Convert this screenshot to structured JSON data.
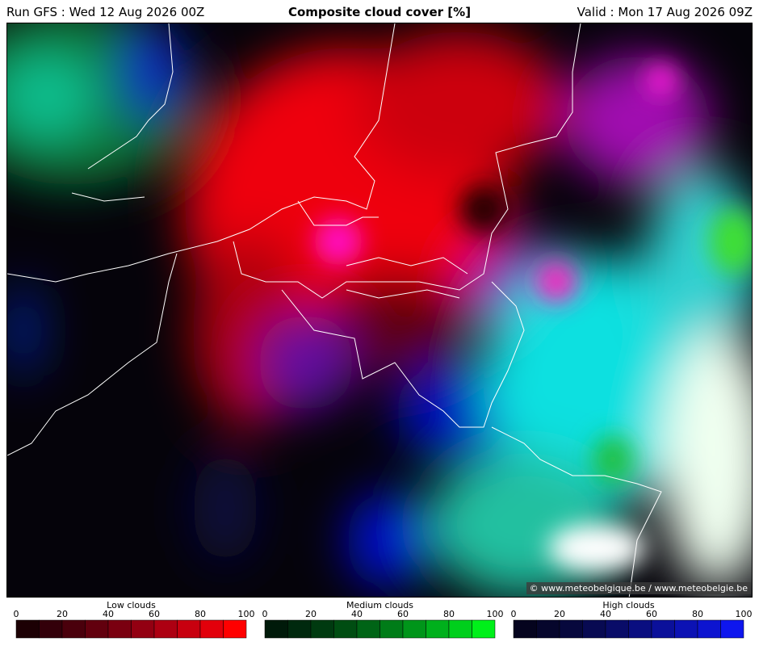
{
  "header": {
    "run": "Run GFS : Wed 12 Aug 2026 00Z",
    "title": "Composite cloud cover [%]",
    "valid": "Valid : Mon 17 Aug 2026 09Z"
  },
  "credit": "© www.meteobelgique.be / www.meteobelgie.be",
  "legends": [
    {
      "label": "Low clouds",
      "ticks": [
        0,
        20,
        40,
        60,
        80,
        100
      ],
      "colors": [
        "#1c0004",
        "#33000a",
        "#4a000c",
        "#62000e",
        "#7a0010",
        "#930012",
        "#ad0012",
        "#c8000f",
        "#e2000b",
        "#ff0000"
      ]
    },
    {
      "label": "Medium clouds",
      "ticks": [
        0,
        20,
        40,
        60,
        80,
        100
      ],
      "colors": [
        "#001a0a",
        "#00290e",
        "#003a10",
        "#004d12",
        "#006416",
        "#007c18",
        "#00951a",
        "#00b01c",
        "#00cf1c",
        "#00f01a"
      ]
    },
    {
      "label": "High clouds",
      "ticks": [
        0,
        20,
        40,
        60,
        80,
        100
      ],
      "colors": [
        "#05041e",
        "#06062c",
        "#07083d",
        "#080a52",
        "#090c68",
        "#0a0e80",
        "#0b109a",
        "#0c12b4",
        "#0d14d0",
        "#0e16ee"
      ]
    }
  ]
}
